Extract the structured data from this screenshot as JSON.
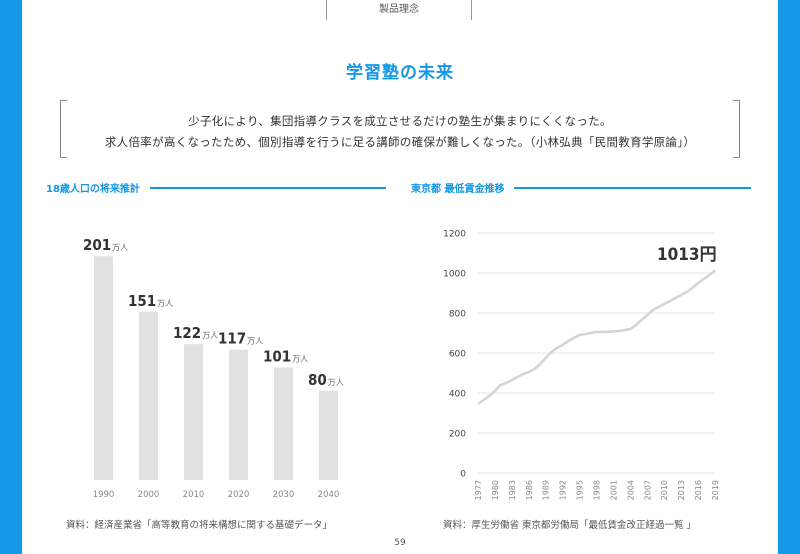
{
  "header": {
    "tab_label": "製品理念"
  },
  "title": "学習塾の未来",
  "quote": {
    "line1": "少子化により、集団指導クラスを成立させるだけの塾生が集まりにくくなった。",
    "line2": "求人倍率が高くなったため、個別指導を行うに足る講師の確保が難しくなった。（小林弘典「民間教育学原論」）"
  },
  "colors": {
    "accent": "#1497e4",
    "bar": "#e1e1e1",
    "line": "#d4d4d4",
    "grid": "#e6e6e6",
    "value_text": "#333333"
  },
  "left_section": {
    "heading": "18歳人口の将来推計",
    "source": "資料：経済産業省「高等教育の将来構想に関する基礎データ」"
  },
  "right_section": {
    "heading": "東京都 最低賃金推移",
    "source": "資料：厚生労働省 東京都労働局「最低賃金改正経過一覧 」"
  },
  "page_number": "59",
  "chart_data": [
    {
      "type": "bar",
      "title": "18歳人口の将来推計",
      "categories": [
        "1990",
        "2000",
        "2010",
        "2020",
        "2030",
        "2040"
      ],
      "values": [
        201,
        151,
        122,
        117,
        101,
        80
      ],
      "unit": "万人",
      "ylim": [
        0,
        220
      ],
      "grid": false,
      "legend": "none"
    },
    {
      "type": "line",
      "title": "東京都 最低賃金推移",
      "x": [
        "1977",
        "1978",
        "1979",
        "1980",
        "1981",
        "1982",
        "1983",
        "1984",
        "1985",
        "1986",
        "1987",
        "1988",
        "1989",
        "1990",
        "1991",
        "1992",
        "1993",
        "1994",
        "1995",
        "1996",
        "1997",
        "1998",
        "1999",
        "2000",
        "2001",
        "2002",
        "2003",
        "2004",
        "2005",
        "2006",
        "2007",
        "2008",
        "2009",
        "2010",
        "2011",
        "2012",
        "2013",
        "2014",
        "2015",
        "2016",
        "2017",
        "2018",
        "2019"
      ],
      "x_tick_labels": [
        "1977",
        "1980",
        "1983",
        "1986",
        "1989",
        "1992",
        "1995",
        "1998",
        "2001",
        "2004",
        "2007",
        "2010",
        "2013",
        "2016",
        "2019"
      ],
      "series": [
        {
          "values": [
            345,
            365,
            385,
            410,
            440,
            450,
            465,
            480,
            495,
            505,
            520,
            545,
            575,
            605,
            625,
            640,
            660,
            675,
            690,
            695,
            700,
            705,
            705,
            706,
            708,
            710,
            715,
            720,
            740,
            765,
            790,
            815,
            830,
            845,
            860,
            875,
            890,
            905,
            925,
            950,
            970,
            990,
            1013
          ]
        }
      ],
      "annotation": "1013円",
      "ylim": [
        0,
        1200
      ],
      "y_ticks": [
        0,
        200,
        400,
        600,
        800,
        1000,
        1200
      ],
      "grid": true,
      "legend": "none"
    }
  ]
}
